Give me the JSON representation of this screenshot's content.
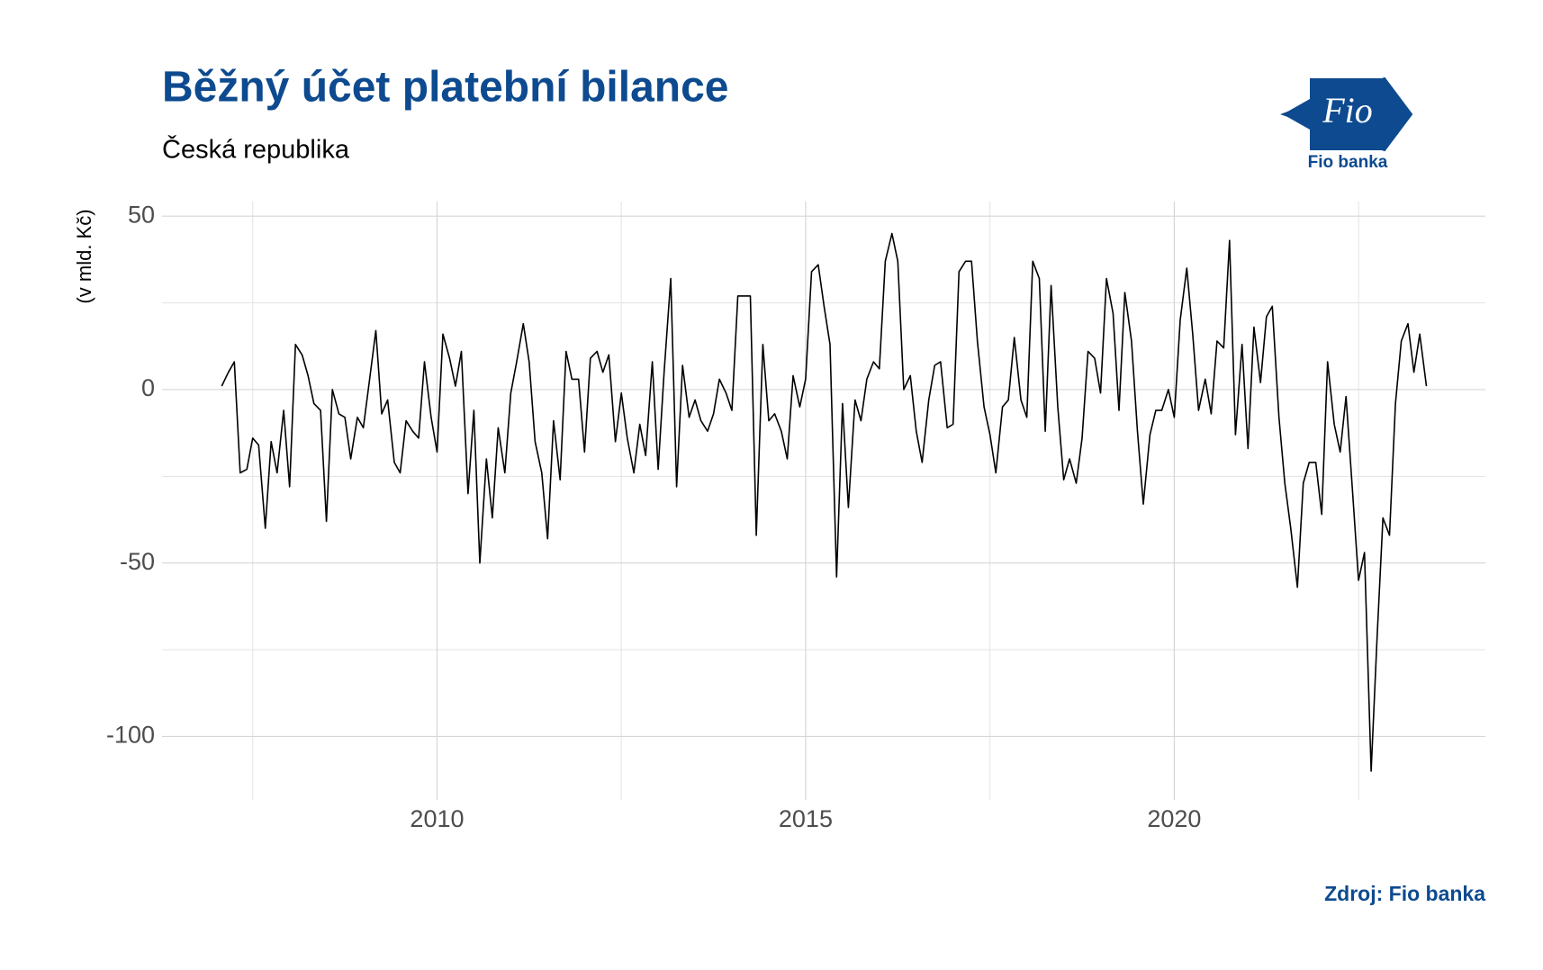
{
  "chart_data": {
    "type": "line",
    "title": "Běžný účet platební bilance",
    "subtitle": "Česká republika",
    "y_label": "(v mld. Kč)",
    "source": "Zdroj: Fio banka",
    "logo": {
      "mark": "Fio",
      "name": "Fio banka"
    },
    "color": "#000000",
    "grid": true,
    "xlim": [
      2006.27,
      2024.22
    ],
    "xticks": [
      2010,
      2015,
      2020
    ],
    "xminor_ticks": [
      2007.5,
      2012.5,
      2017.5,
      2022.5
    ],
    "ylim": [
      -118.3,
      54.2
    ],
    "yticks": [
      50,
      0,
      -50,
      -100
    ],
    "yminor_ticks": [
      25,
      -25,
      -75
    ],
    "x": [
      2007.08,
      2007.17,
      2007.25,
      2007.33,
      2007.42,
      2007.5,
      2007.58,
      2007.67,
      2007.75,
      2007.83,
      2007.92,
      2008.0,
      2008.08,
      2008.17,
      2008.25,
      2008.33,
      2008.42,
      2008.5,
      2008.58,
      2008.67,
      2008.75,
      2008.83,
      2008.92,
      2009.0,
      2009.08,
      2009.17,
      2009.25,
      2009.33,
      2009.42,
      2009.5,
      2009.58,
      2009.67,
      2009.75,
      2009.83,
      2009.92,
      2010.0,
      2010.08,
      2010.17,
      2010.25,
      2010.33,
      2010.42,
      2010.5,
      2010.58,
      2010.67,
      2010.75,
      2010.83,
      2010.92,
      2011.0,
      2011.08,
      2011.17,
      2011.25,
      2011.33,
      2011.42,
      2011.5,
      2011.58,
      2011.67,
      2011.75,
      2011.83,
      2011.92,
      2012.0,
      2012.08,
      2012.17,
      2012.25,
      2012.33,
      2012.42,
      2012.5,
      2012.58,
      2012.67,
      2012.75,
      2012.83,
      2012.92,
      2013.0,
      2013.08,
      2013.17,
      2013.25,
      2013.33,
      2013.42,
      2013.5,
      2013.58,
      2013.67,
      2013.75,
      2013.83,
      2013.92,
      2014.0,
      2014.08,
      2014.17,
      2014.25,
      2014.33,
      2014.42,
      2014.5,
      2014.58,
      2014.67,
      2014.75,
      2014.83,
      2014.92,
      2015.0,
      2015.08,
      2015.17,
      2015.25,
      2015.33,
      2015.42,
      2015.5,
      2015.58,
      2015.67,
      2015.75,
      2015.83,
      2015.92,
      2016.0,
      2016.08,
      2016.17,
      2016.25,
      2016.33,
      2016.42,
      2016.5,
      2016.58,
      2016.67,
      2016.75,
      2016.83,
      2016.92,
      2017.0,
      2017.08,
      2017.17,
      2017.25,
      2017.33,
      2017.42,
      2017.5,
      2017.58,
      2017.67,
      2017.75,
      2017.83,
      2017.92,
      2018.0,
      2018.08,
      2018.17,
      2018.25,
      2018.33,
      2018.42,
      2018.5,
      2018.58,
      2018.67,
      2018.75,
      2018.83,
      2018.92,
      2019.0,
      2019.08,
      2019.17,
      2019.25,
      2019.33,
      2019.42,
      2019.5,
      2019.58,
      2019.67,
      2019.75,
      2019.83,
      2019.92,
      2020.0,
      2020.08,
      2020.17,
      2020.25,
      2020.33,
      2020.42,
      2020.5,
      2020.58,
      2020.67,
      2020.75,
      2020.83,
      2020.92,
      2021.0,
      2021.08,
      2021.17,
      2021.25,
      2021.33,
      2021.42,
      2021.5,
      2021.58,
      2021.67,
      2021.75,
      2021.83,
      2021.92,
      2022.0,
      2022.08,
      2022.17,
      2022.25,
      2022.33,
      2022.42,
      2022.5,
      2022.58,
      2022.67,
      2022.75,
      2022.83,
      2022.92,
      2023.0,
      2023.08,
      2023.17,
      2023.25,
      2023.33,
      2023.42
    ],
    "values": [
      1,
      5,
      8,
      -24,
      -23,
      -14,
      -16,
      -40,
      -15,
      -24,
      -6,
      -28,
      13,
      10,
      4,
      -4,
      -6,
      -38,
      0,
      -7,
      -8,
      -20,
      -8,
      -11,
      2,
      17,
      -7,
      -3,
      -21,
      -24,
      -9,
      -12,
      -14,
      8,
      -8,
      -18,
      16,
      9,
      1,
      11,
      -30,
      -6,
      -50,
      -20,
      -37,
      -11,
      -24,
      -1,
      8,
      19,
      8,
      -15,
      -24,
      -43,
      -9,
      -26,
      11,
      3,
      3,
      -18,
      9,
      11,
      5,
      10,
      -15,
      -1,
      -14,
      -24,
      -10,
      -19,
      8,
      -23,
      5,
      32,
      -28,
      7,
      -8,
      -3,
      -9,
      -12,
      -7,
      3,
      -1,
      -6,
      27,
      27,
      27,
      -42,
      13,
      -9,
      -7,
      -12,
      -20,
      4,
      -5,
      3,
      34,
      36,
      24,
      13,
      -54,
      -4,
      -34,
      -3,
      -9,
      3,
      8,
      6,
      37,
      45,
      37,
      0,
      4,
      -12,
      -21,
      -3,
      7,
      8,
      -11,
      -10,
      34,
      37,
      37,
      14,
      -5,
      -13,
      -24,
      -5,
      -3,
      15,
      -3,
      -8,
      37,
      32,
      -12,
      30,
      -5,
      -26,
      -20,
      -27,
      -14,
      11,
      9,
      -1,
      32,
      22,
      -6,
      28,
      14,
      -12,
      -33,
      -13,
      -6,
      -6,
      0,
      -8,
      20,
      35,
      16,
      -6,
      3,
      -7,
      14,
      12,
      43,
      -13,
      13,
      -17,
      18,
      2,
      21,
      24,
      -8,
      -27,
      -40,
      -57,
      -27,
      -21,
      -21,
      -36,
      8,
      -10,
      -18,
      -2,
      -30,
      -55,
      -47,
      -110,
      -72,
      -37,
      -42,
      -4,
      14,
      19,
      5,
      16,
      1
    ]
  }
}
